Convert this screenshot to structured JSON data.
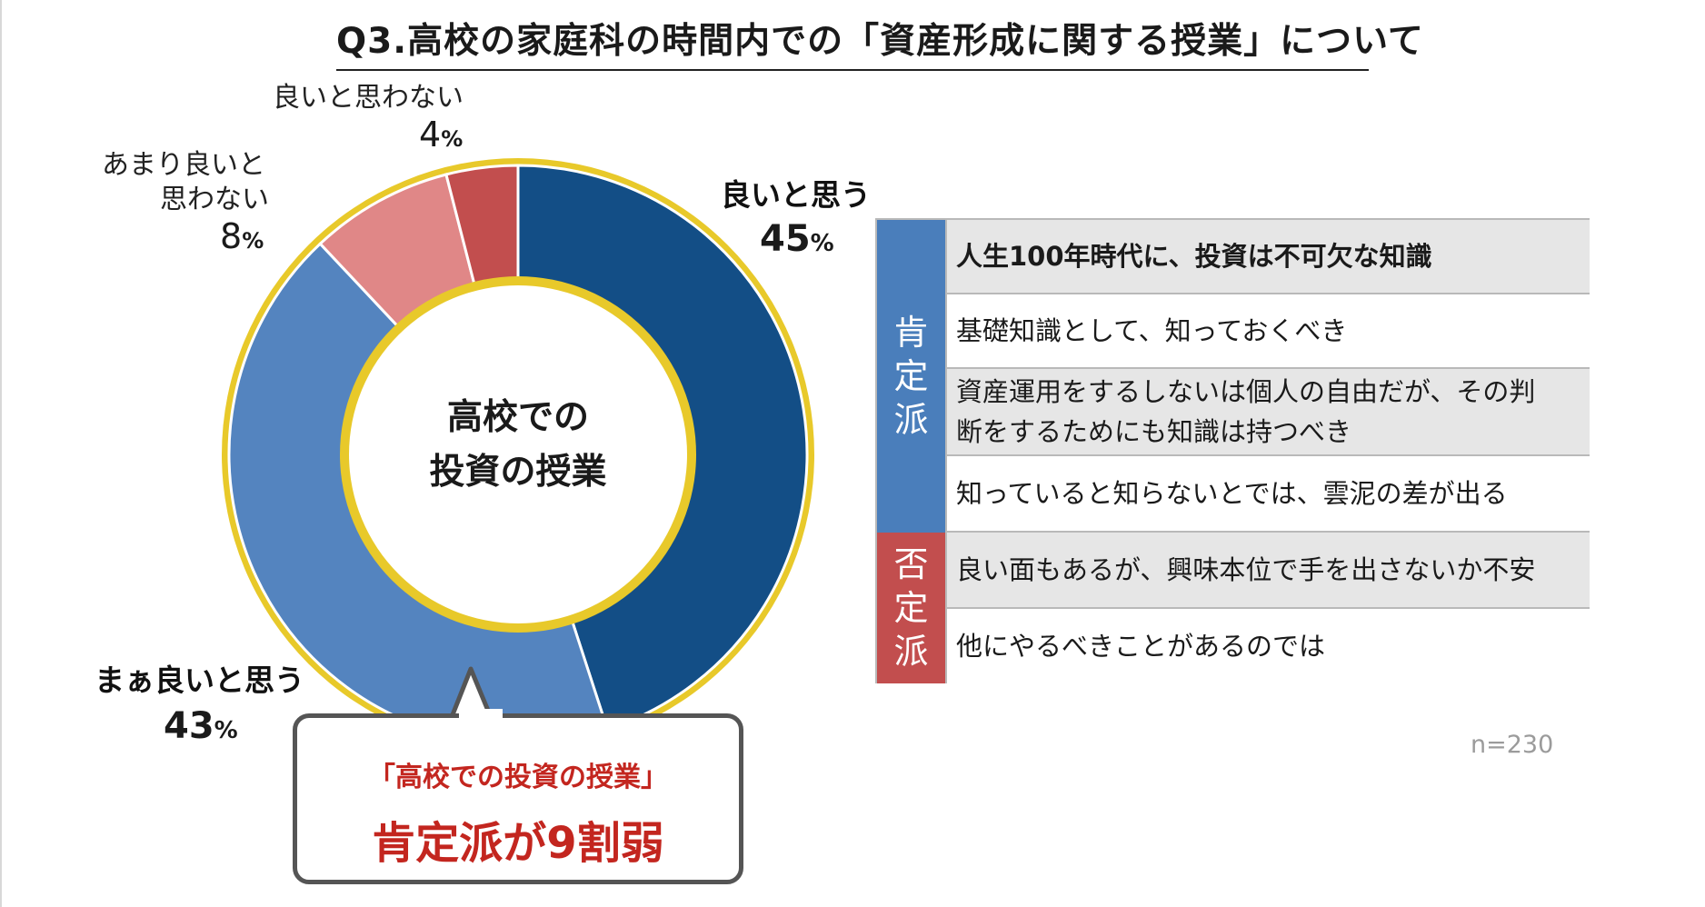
{
  "title": "Q3.高校の家庭科の時間内での「資産形成に関する授業」について",
  "center_label": {
    "line1": "高校での",
    "line2": "投資の授業"
  },
  "labels": {
    "good": {
      "name": "良いと思う",
      "pct": "45",
      "sign": "%"
    },
    "fairly_good": {
      "name": "まぁ良いと思う",
      "pct": "43",
      "sign": "%"
    },
    "not_very_good": {
      "name1": "あまり良いと",
      "name2": "思わない",
      "pct": "8",
      "sign": "%"
    },
    "not_good": {
      "name": "良いと思わない",
      "pct": "4",
      "sign": "%"
    }
  },
  "callout": {
    "line1": "「高校での投資の授業」",
    "line2": "肯定派が9割弱"
  },
  "table": {
    "positive_label": [
      "肯",
      "定",
      "派"
    ],
    "negative_label": [
      "否",
      "定",
      "派"
    ],
    "rows": [
      "人生100年時代に、投資は不可欠な知識",
      "基礎知識として、知っておくべき",
      "資産運用をするしないは個人の自由だが、その判",
      "断をするためにも知識は持つべき",
      "知っていると知らないとでは、雲泥の差が出る",
      "良い面もあるが、興味本位で手を出さないか不安",
      "他にやるべきことがあるのでは"
    ]
  },
  "n": "n=230",
  "chart_data": {
    "type": "pie",
    "title": "Q3.高校の家庭科の時間内での「資産形成に関する授業」について",
    "categories": [
      "良いと思う",
      "まぁ良いと思う",
      "あまり良いと思わない",
      "良いと思わない"
    ],
    "values": [
      45,
      43,
      8,
      4
    ],
    "colors": [
      "#134e86",
      "#5484bf",
      "#e08787",
      "#c24e4e"
    ],
    "ring_color": "#e8c92a",
    "donut": true
  }
}
